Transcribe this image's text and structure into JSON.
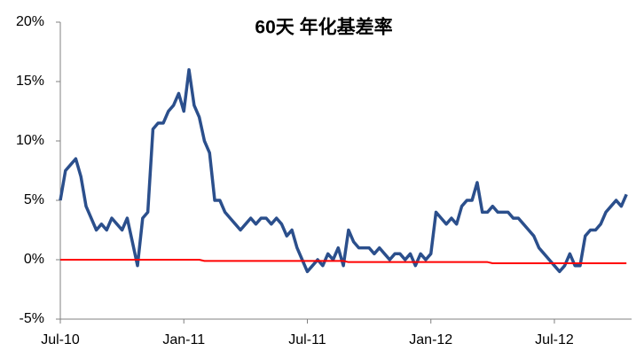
{
  "chart_data": {
    "type": "line",
    "title": "60天 年化基差率",
    "categories": [
      "Jul-10",
      null,
      null,
      null,
      null,
      null,
      null,
      null,
      null,
      null,
      null,
      null,
      null,
      null,
      null,
      null,
      null,
      null,
      null,
      null,
      null,
      null,
      null,
      null,
      "Jan-11",
      null,
      null,
      null,
      null,
      null,
      null,
      null,
      null,
      null,
      null,
      null,
      null,
      null,
      null,
      null,
      null,
      null,
      null,
      null,
      null,
      null,
      null,
      null,
      "Jul-11",
      null,
      null,
      null,
      null,
      null,
      null,
      null,
      null,
      null,
      null,
      null,
      null,
      null,
      null,
      null,
      null,
      null,
      null,
      null,
      null,
      null,
      null,
      null,
      "Jan-12",
      null,
      null,
      null,
      null,
      null,
      null,
      null,
      null,
      null,
      null,
      null,
      null,
      null,
      null,
      null,
      null,
      null,
      null,
      null,
      null,
      null,
      null,
      null,
      "Jul-12",
      null,
      null,
      null,
      null,
      null,
      null,
      null,
      null,
      null,
      null,
      null,
      null,
      null,
      null
    ],
    "series": [
      {
        "color": "#2b4f8c",
        "values": [
          5,
          7.5,
          8,
          8.5,
          7,
          4.5,
          3.5,
          2.5,
          3,
          2.5,
          3.5,
          3,
          2.5,
          3.5,
          1.5,
          -0.5,
          3.5,
          4,
          11,
          11.5,
          11.5,
          12.5,
          13,
          14,
          12.5,
          16,
          13,
          12,
          10,
          9,
          5,
          5,
          4,
          3.5,
          3,
          2.5,
          3,
          3.5,
          3,
          3.5,
          3.5,
          3,
          3.5,
          3,
          2,
          2.5,
          1,
          0,
          -1,
          -0.5,
          0,
          -0.5,
          0.5,
          0,
          1,
          -0.5,
          2.5,
          1.5,
          1,
          1,
          1,
          0.5,
          1,
          0.5,
          0,
          0.5,
          0.5,
          0,
          0.5,
          -0.5,
          0.5,
          0,
          0.5,
          4,
          3.5,
          3,
          3.5,
          3,
          4.5,
          5,
          5,
          6.5,
          4,
          4,
          4.5,
          4,
          4,
          4,
          3.5,
          3.5,
          3,
          2.5,
          2,
          1,
          0.5,
          0,
          -0.5,
          -1,
          -0.5,
          0.5,
          -0.5,
          -0.5,
          2,
          2.5,
          2.5,
          3,
          4,
          4.5,
          5,
          4.5,
          5.5
        ]
      },
      {
        "color": "#ff0000",
        "values": [
          0,
          0,
          0,
          0,
          0,
          0,
          0,
          0,
          0,
          0,
          0,
          0,
          0,
          0,
          0,
          0,
          0,
          0,
          0,
          0,
          0,
          0,
          0,
          0,
          0,
          0,
          0,
          0,
          -0.1,
          -0.1,
          -0.1,
          -0.1,
          -0.1,
          -0.1,
          -0.1,
          -0.1,
          -0.1,
          -0.1,
          -0.1,
          -0.1,
          -0.1,
          -0.1,
          -0.1,
          -0.1,
          -0.1,
          -0.1,
          -0.1,
          -0.1,
          -0.1,
          -0.1,
          -0.1,
          -0.1,
          -0.1,
          -0.1,
          -0.1,
          -0.1,
          -0.2,
          -0.2,
          -0.2,
          -0.2,
          -0.2,
          -0.2,
          -0.2,
          -0.2,
          -0.2,
          -0.2,
          -0.2,
          -0.2,
          -0.2,
          -0.2,
          -0.2,
          -0.2,
          -0.2,
          -0.2,
          -0.2,
          -0.2,
          -0.2,
          -0.2,
          -0.2,
          -0.2,
          -0.2,
          -0.2,
          -0.2,
          -0.2,
          -0.3,
          -0.3,
          -0.3,
          -0.3,
          -0.3,
          -0.3,
          -0.3,
          -0.3,
          -0.3,
          -0.3,
          -0.3,
          -0.3,
          -0.3,
          -0.3,
          -0.3,
          -0.3,
          -0.3,
          -0.3,
          -0.3,
          -0.3,
          -0.3,
          -0.3,
          -0.3,
          -0.3,
          -0.3,
          -0.3,
          -0.3
        ]
      }
    ],
    "ylim": [
      -5,
      20
    ],
    "yticks": [
      {
        "value": -5,
        "label": "-5%"
      },
      {
        "value": 0,
        "label": "0%"
      },
      {
        "value": 5,
        "label": "5%"
      },
      {
        "value": 10,
        "label": "10%"
      },
      {
        "value": 15,
        "label": "15%"
      },
      {
        "value": 20,
        "label": "20%"
      }
    ]
  }
}
